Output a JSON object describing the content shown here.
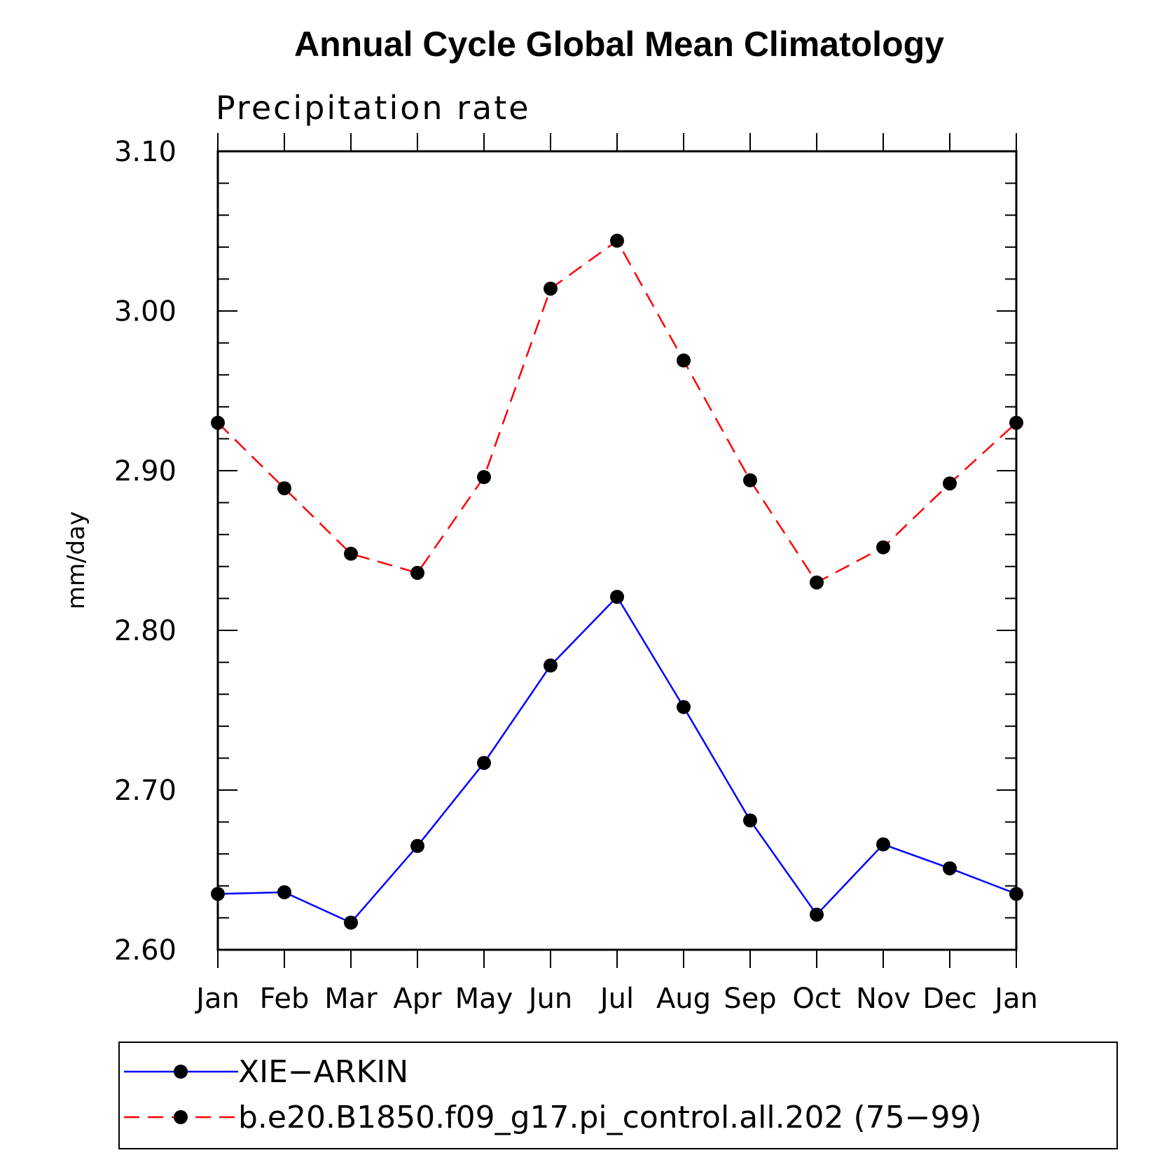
{
  "chart_data": {
    "type": "line",
    "title": "Annual Cycle Global Mean Climatology",
    "subtitle": "Precipitation rate",
    "ylabel": "mm/day",
    "xlabel": "",
    "categories": [
      "Jan",
      "Feb",
      "Mar",
      "Apr",
      "May",
      "Jun",
      "Jul",
      "Aug",
      "Sep",
      "Oct",
      "Nov",
      "Dec",
      "Jan"
    ],
    "ylim": [
      2.6,
      3.1
    ],
    "yticks": [
      "2.60",
      "2.70",
      "2.80",
      "2.90",
      "3.00",
      "3.10"
    ],
    "series": [
      {
        "name": "XIE−ARKIN",
        "color": "#0000ff",
        "line_style": "solid",
        "values": [
          2.635,
          2.636,
          2.617,
          2.665,
          2.717,
          2.778,
          2.821,
          2.752,
          2.681,
          2.622,
          2.666,
          2.651,
          2.635
        ]
      },
      {
        "name": "b.e20.B1850.f09_g17.pi_control.all.202 (75−99)",
        "color": "#ff0000",
        "line_style": "dashed",
        "values": [
          2.93,
          2.889,
          2.848,
          2.836,
          2.896,
          3.014,
          3.044,
          2.969,
          2.894,
          2.83,
          2.852,
          2.892,
          2.93
        ]
      }
    ],
    "marker": "filled-circle",
    "marker_color": "#000000",
    "legend_position": "bottom"
  }
}
